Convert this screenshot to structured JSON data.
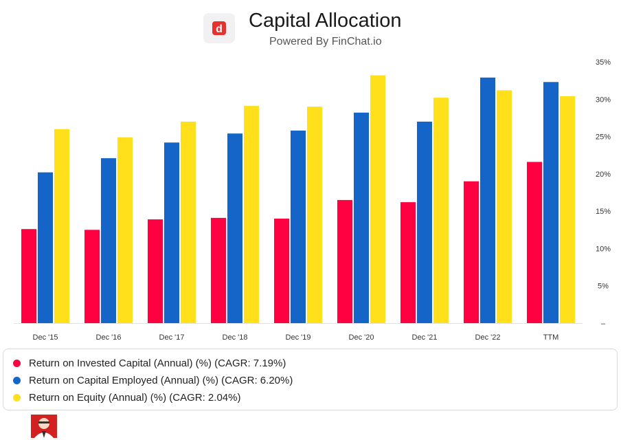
{
  "header": {
    "title": "Capital Allocation",
    "subtitle": "Powered By FinChat.io",
    "logo_letter": "d",
    "logo_color": "#e8312f"
  },
  "chart_data": {
    "type": "bar",
    "title": "Capital Allocation",
    "subtitle": "Powered By FinChat.io",
    "categories": [
      "Dec '15",
      "Dec '16",
      "Dec '17",
      "Dec '18",
      "Dec '19",
      "Dec '20",
      "Dec '21",
      "Dec '22",
      "TTM"
    ],
    "series": [
      {
        "name": "Return on Invested Capital (Annual) (%)",
        "cagr_label": "(CAGR: 7.19%)",
        "color": "#ff0040",
        "values": [
          12.6,
          12.5,
          13.9,
          14.1,
          14.0,
          16.5,
          16.2,
          19.0,
          21.6
        ]
      },
      {
        "name": "Return on Capital Employed (Annual) (%)",
        "cagr_label": "(CAGR: 6.20%)",
        "color": "#1565c8",
        "values": [
          20.2,
          22.1,
          24.2,
          25.4,
          25.8,
          28.2,
          27.0,
          32.9,
          32.3
        ]
      },
      {
        "name": "Return on Equity (Annual) (%)",
        "cagr_label": "(CAGR: 2.04%)",
        "color": "#ffe01a",
        "values": [
          26.0,
          24.9,
          27.0,
          29.1,
          29.0,
          33.2,
          30.2,
          31.2,
          30.4
        ]
      }
    ],
    "yticks": [
      0,
      5,
      10,
      15,
      20,
      25,
      30,
      35
    ],
    "ytick_labels": [
      "–",
      "5%",
      "10%",
      "15%",
      "20%",
      "25%",
      "30%",
      "35%"
    ],
    "ylim": [
      0,
      35
    ],
    "axis_position": "right",
    "grid": false,
    "legend_position": "bottom"
  }
}
